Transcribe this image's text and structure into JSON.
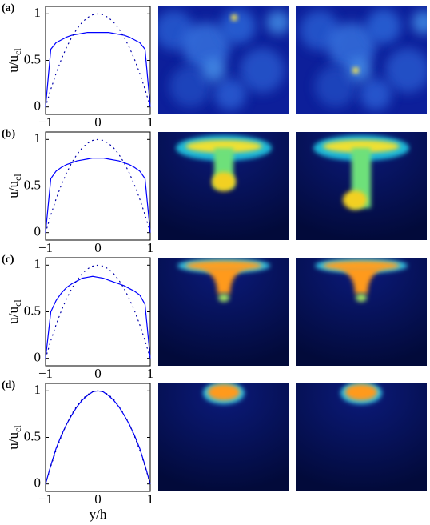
{
  "chart_data": [
    {
      "type": "line",
      "panel": "(a)",
      "ylabel": "u/u",
      "ylabel_sub": "cl",
      "x": [
        -1,
        -0.9,
        -0.8,
        -0.7,
        -0.6,
        -0.5,
        -0.4,
        -0.3,
        -0.2,
        -0.1,
        0,
        0.1,
        0.2,
        0.3,
        0.4,
        0.5,
        0.6,
        0.7,
        0.8,
        0.9,
        1
      ],
      "xlim": [
        -1,
        1
      ],
      "ylim": [
        -0.08,
        1.08
      ],
      "xticks": [
        {
          "value": -1,
          "label": "−1"
        },
        0,
        1
      ],
      "yticks": [
        0,
        0.5,
        1
      ],
      "series": [
        {
          "color": "#0000ff",
          "style": "solid",
          "values": [
            0,
            0.62,
            0.69,
            0.72,
            0.75,
            0.77,
            0.78,
            0.79,
            0.8,
            0.8,
            0.8,
            0.8,
            0.8,
            0.79,
            0.78,
            0.77,
            0.75,
            0.72,
            0.69,
            0.62,
            0
          ]
        },
        {
          "color": "#0000aa",
          "style": "dotted",
          "values": [
            0,
            0.19,
            0.36,
            0.51,
            0.64,
            0.75,
            0.84,
            0.91,
            0.96,
            0.99,
            1,
            0.99,
            0.96,
            0.91,
            0.84,
            0.75,
            0.64,
            0.51,
            0.36,
            0.19,
            0
          ]
        }
      ]
    },
    {
      "type": "line",
      "panel": "(b)",
      "ylabel": "u/u",
      "ylabel_sub": "cl",
      "x": [
        -1,
        -0.9,
        -0.8,
        -0.7,
        -0.6,
        -0.5,
        -0.4,
        -0.3,
        -0.2,
        -0.1,
        0,
        0.1,
        0.2,
        0.3,
        0.4,
        0.5,
        0.6,
        0.7,
        0.8,
        0.9,
        1
      ],
      "xlim": [
        -1,
        1
      ],
      "ylim": [
        -0.08,
        1.08
      ],
      "xticks": [
        {
          "value": -1,
          "label": "−1"
        },
        0,
        1
      ],
      "yticks": [
        0,
        0.5,
        1
      ],
      "series": [
        {
          "color": "#0000ff",
          "style": "solid",
          "values": [
            0,
            0.58,
            0.66,
            0.7,
            0.73,
            0.75,
            0.77,
            0.78,
            0.79,
            0.8,
            0.8,
            0.8,
            0.79,
            0.78,
            0.77,
            0.75,
            0.73,
            0.7,
            0.66,
            0.58,
            0
          ]
        },
        {
          "color": "#0000aa",
          "style": "dotted",
          "values": [
            0,
            0.19,
            0.36,
            0.51,
            0.64,
            0.75,
            0.84,
            0.91,
            0.96,
            0.99,
            1,
            0.99,
            0.96,
            0.91,
            0.84,
            0.75,
            0.64,
            0.51,
            0.36,
            0.19,
            0
          ]
        }
      ]
    },
    {
      "type": "line",
      "panel": "(c)",
      "ylabel": "u/u",
      "ylabel_sub": "cl",
      "x": [
        -1,
        -0.9,
        -0.8,
        -0.7,
        -0.6,
        -0.5,
        -0.4,
        -0.3,
        -0.2,
        -0.1,
        0,
        0.1,
        0.2,
        0.3,
        0.4,
        0.5,
        0.6,
        0.7,
        0.8,
        0.9,
        1
      ],
      "xlim": [
        -1,
        1
      ],
      "ylim": [
        -0.08,
        1.08
      ],
      "xticks": [
        {
          "value": -1,
          "label": "−1"
        },
        0,
        1
      ],
      "yticks": [
        0,
        0.5,
        1
      ],
      "series": [
        {
          "color": "#0000ff",
          "style": "solid",
          "values": [
            0,
            0.5,
            0.62,
            0.7,
            0.76,
            0.8,
            0.83,
            0.86,
            0.87,
            0.88,
            0.87,
            0.86,
            0.84,
            0.82,
            0.8,
            0.78,
            0.75,
            0.72,
            0.68,
            0.58,
            0
          ]
        },
        {
          "color": "#0000aa",
          "style": "dotted",
          "values": [
            0,
            0.19,
            0.36,
            0.51,
            0.64,
            0.75,
            0.84,
            0.91,
            0.96,
            0.99,
            1,
            0.99,
            0.96,
            0.91,
            0.84,
            0.75,
            0.64,
            0.51,
            0.36,
            0.19,
            0
          ]
        }
      ]
    },
    {
      "type": "line",
      "panel": "(d)",
      "ylabel": "u/u",
      "ylabel_sub": "cl",
      "xlabel": "y/h",
      "x": [
        -1,
        -0.9,
        -0.8,
        -0.7,
        -0.6,
        -0.5,
        -0.4,
        -0.3,
        -0.2,
        -0.1,
        0,
        0.1,
        0.2,
        0.3,
        0.4,
        0.5,
        0.6,
        0.7,
        0.8,
        0.9,
        1
      ],
      "xlim": [
        -1,
        1
      ],
      "ylim": [
        -0.08,
        1.08
      ],
      "xticks": [
        {
          "value": -1,
          "label": "−1"
        },
        0,
        1
      ],
      "yticks": [
        0,
        0.5,
        1
      ],
      "series": [
        {
          "color": "#0000ff",
          "style": "solid",
          "values": [
            0,
            0.2,
            0.38,
            0.52,
            0.64,
            0.74,
            0.83,
            0.9,
            0.95,
            0.99,
            1,
            0.99,
            0.95,
            0.9,
            0.83,
            0.74,
            0.64,
            0.52,
            0.38,
            0.2,
            0
          ]
        },
        {
          "color": "#0000aa",
          "style": "dotted",
          "values": [
            0,
            0.19,
            0.36,
            0.51,
            0.64,
            0.75,
            0.84,
            0.91,
            0.96,
            0.99,
            1,
            0.99,
            0.96,
            0.91,
            0.84,
            0.75,
            0.64,
            0.51,
            0.36,
            0.19,
            0
          ]
        }
      ]
    }
  ]
}
